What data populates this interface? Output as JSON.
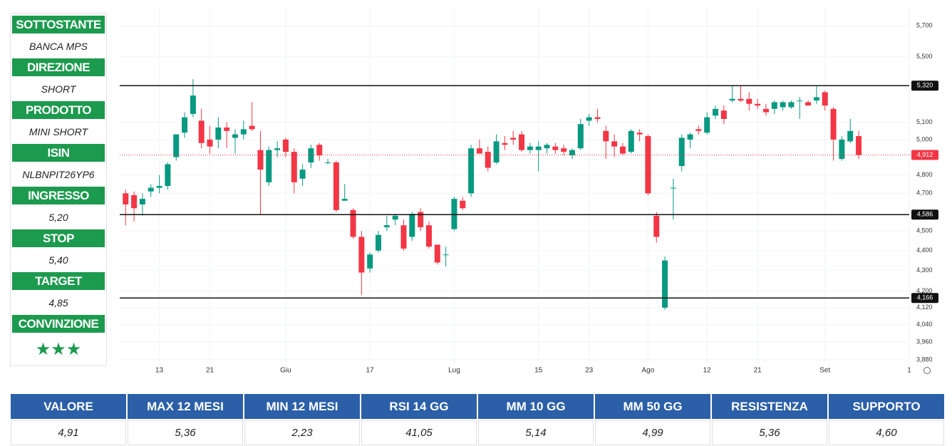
{
  "panel": [
    {
      "label": "SOTTOSTANTE",
      "value": "BANCA MPS"
    },
    {
      "label": "DIREZIONE",
      "value": "SHORT"
    },
    {
      "label": "PRODOTTO",
      "value": "MINI SHORT"
    },
    {
      "label": "ISIN",
      "value": "NLBNPIT26YP6"
    },
    {
      "label": "INGRESSO",
      "value": "5,20"
    },
    {
      "label": "STOP",
      "value": "5,40"
    },
    {
      "label": "TARGET",
      "value": "4,85"
    },
    {
      "label": "CONVINZIONE",
      "value": "★★★"
    }
  ],
  "chart_data": {
    "type": "candlestick",
    "log_scale": true,
    "grid": true,
    "up_color": "#089981",
    "down_color": "#f23645",
    "x": [
      1,
      2,
      3,
      4,
      5,
      6,
      7,
      8,
      9,
      10,
      11,
      12,
      13,
      14,
      15,
      16,
      17,
      18,
      19,
      20,
      21,
      22,
      23,
      24,
      25,
      26,
      27,
      28,
      29,
      30,
      31,
      32,
      33,
      34,
      35,
      36,
      37,
      38,
      39,
      40,
      41,
      42,
      43,
      44,
      45,
      46,
      47,
      48,
      49,
      50,
      51,
      52,
      53,
      54,
      55,
      56,
      57,
      58,
      59,
      60,
      61,
      62,
      63,
      64,
      65,
      66,
      67,
      68,
      69,
      70,
      71,
      72,
      73,
      74,
      75,
      76,
      77,
      78,
      79,
      80,
      81,
      82,
      83,
      84,
      85,
      86,
      87,
      88
    ],
    "open": [
      4.7,
      4.69,
      4.64,
      4.71,
      4.73,
      4.74,
      4.9,
      5.04,
      5.15,
      5.11,
      5.0,
      5.0,
      5.07,
      5.01,
      5.03,
      5.08,
      4.94,
      4.76,
      4.94,
      5.0,
      4.93,
      4.78,
      4.87,
      4.97,
      4.87,
      4.87,
      4.66,
      4.61,
      4.47,
      4.31,
      4.4,
      4.52,
      4.56,
      4.53,
      4.47,
      4.6,
      4.53,
      4.43,
      4.38,
      4.51,
      4.66,
      4.7,
      4.95,
      4.93,
      4.87,
      4.98,
      5.01,
      5.03,
      4.94,
      4.94,
      4.95,
      4.96,
      4.95,
      4.91,
      4.95,
      5.11,
      5.13,
      5.05,
      4.99,
      4.96,
      4.93,
      5.04,
      5.02,
      4.58,
      4.12,
      4.73,
      4.85,
      5.0,
      5.06,
      5.04,
      5.14,
      5.17,
      5.23,
      5.24,
      5.24,
      5.21,
      5.18,
      5.18,
      5.19,
      5.19,
      5.23,
      5.22,
      5.23,
      5.28,
      5.18,
      4.89,
      4.99,
      5.02
    ],
    "high": [
      4.72,
      4.71,
      4.7,
      4.75,
      4.8,
      4.87,
      5.03,
      5.16,
      5.36,
      5.18,
      5.08,
      5.13,
      5.1,
      5.06,
      5.11,
      5.22,
      5.05,
      4.96,
      4.99,
      5.01,
      4.95,
      4.86,
      4.97,
      4.98,
      4.89,
      4.88,
      4.75,
      4.62,
      4.5,
      4.39,
      4.5,
      4.58,
      4.59,
      4.56,
      4.6,
      4.62,
      4.55,
      4.43,
      4.42,
      4.68,
      4.68,
      4.97,
      5.0,
      4.96,
      5.03,
      5.02,
      5.05,
      5.05,
      4.98,
      4.99,
      4.98,
      4.98,
      4.97,
      4.95,
      5.12,
      5.15,
      5.18,
      5.08,
      5.03,
      4.98,
      5.06,
      5.06,
      5.03,
      4.6,
      4.37,
      4.78,
      5.03,
      5.04,
      5.08,
      5.16,
      5.2,
      5.2,
      5.32,
      5.32,
      5.28,
      5.24,
      5.21,
      5.23,
      5.23,
      5.23,
      5.25,
      5.23,
      5.32,
      5.29,
      5.19,
      5.02,
      5.12,
      5.05
    ],
    "low": [
      4.53,
      4.55,
      4.58,
      4.68,
      4.7,
      4.72,
      4.88,
      5.01,
      5.13,
      4.95,
      4.92,
      4.95,
      4.95,
      4.92,
      5.0,
      5.05,
      4.59,
      4.74,
      4.9,
      4.9,
      4.7,
      4.74,
      4.84,
      4.88,
      4.86,
      4.6,
      4.66,
      4.46,
      4.18,
      4.29,
      4.39,
      4.5,
      4.53,
      4.4,
      4.45,
      4.5,
      4.41,
      4.33,
      4.32,
      4.5,
      4.61,
      4.68,
      4.92,
      4.82,
      4.86,
      4.94,
      4.97,
      4.93,
      4.92,
      4.82,
      4.92,
      4.92,
      4.91,
      4.89,
      4.94,
      5.08,
      5.1,
      4.89,
      4.9,
      4.91,
      4.92,
      4.99,
      4.69,
      4.44,
      4.11,
      4.56,
      4.82,
      4.95,
      5.03,
      5.03,
      5.12,
      5.09,
      5.22,
      5.22,
      5.17,
      5.18,
      5.14,
      5.15,
      5.17,
      5.18,
      5.12,
      5.2,
      5.21,
      5.17,
      4.88,
      4.88,
      4.98,
      4.89
    ],
    "close": [
      4.64,
      4.62,
      4.67,
      4.73,
      4.74,
      4.86,
      5.03,
      5.13,
      5.26,
      4.98,
      4.96,
      5.07,
      5.05,
      5.03,
      5.06,
      5.06,
      4.83,
      4.94,
      4.95,
      4.93,
      4.76,
      4.83,
      4.95,
      4.91,
      4.87,
      4.61,
      4.67,
      4.47,
      4.29,
      4.38,
      4.48,
      4.53,
      4.58,
      4.41,
      4.59,
      4.52,
      4.42,
      4.34,
      4.38,
      4.67,
      4.62,
      4.95,
      4.92,
      4.84,
      4.99,
      4.97,
      5.0,
      4.94,
      4.96,
      4.96,
      4.97,
      4.94,
      4.93,
      4.94,
      5.09,
      5.13,
      5.12,
      4.99,
      4.96,
      4.92,
      5.05,
      5.03,
      4.7,
      4.47,
      4.35,
      4.73,
      5.01,
      5.03,
      5.05,
      5.13,
      5.18,
      5.12,
      5.24,
      5.23,
      5.21,
      5.2,
      5.16,
      5.22,
      5.22,
      5.22,
      5.23,
      5.2,
      5.25,
      5.2,
      5.0,
      5.0,
      5.05,
      4.912
    ],
    "xlim": [
      0.3,
      94
    ],
    "xticks": [
      {
        "value": 5,
        "label": "13"
      },
      {
        "value": 11,
        "label": "21"
      },
      {
        "value": 20,
        "label": "Giu"
      },
      {
        "value": 30,
        "label": "17"
      },
      {
        "value": 40,
        "label": "Lug"
      },
      {
        "value": 50,
        "label": "15"
      },
      {
        "value": 56,
        "label": "23"
      },
      {
        "value": 63,
        "label": "Ago"
      },
      {
        "value": 70,
        "label": "12"
      },
      {
        "value": 76,
        "label": "21"
      },
      {
        "value": 84,
        "label": "Set"
      },
      {
        "value": 94,
        "label": "1"
      }
    ],
    "ylim": [
      3.864,
      5.824
    ],
    "yticks": [
      {
        "value": 5.7,
        "label": "5,700"
      },
      {
        "value": 5.5,
        "label": "5,500"
      },
      {
        "value": 5.1,
        "label": "5,100"
      },
      {
        "value": 5.0,
        "label": "5,000"
      },
      {
        "value": 4.8,
        "label": "4,800"
      },
      {
        "value": 4.7,
        "label": "4,700"
      },
      {
        "value": 4.5,
        "label": "4,500"
      },
      {
        "value": 4.4,
        "label": "4,400"
      },
      {
        "value": 4.3,
        "label": "4,300"
      },
      {
        "value": 4.2,
        "label": "4,200"
      },
      {
        "value": 4.12,
        "label": "4,120"
      },
      {
        "value": 4.04,
        "label": "4,040"
      },
      {
        "value": 3.96,
        "label": "3,960"
      },
      {
        "value": 3.88,
        "label": "3,880"
      }
    ],
    "levels": [
      {
        "value": 5.32,
        "label": "5,320"
      },
      {
        "value": 4.586,
        "label": "4,586"
      },
      {
        "value": 4.166,
        "label": "4,166"
      }
    ],
    "last_price": {
      "value": 4.912,
      "label": "4,912"
    }
  },
  "table": {
    "headers": [
      "VALORE",
      "MAX 12 MESI",
      "MIN 12 MESI",
      "RSI 14 GG",
      "MM 10 GG",
      "MM 50 GG",
      "RESISTENZA",
      "SUPPORTO"
    ],
    "rows": [
      [
        "4,91",
        "5,36",
        "2,23",
        "41,05",
        "5,14",
        "4,99",
        "5,36",
        "4,60"
      ]
    ]
  }
}
